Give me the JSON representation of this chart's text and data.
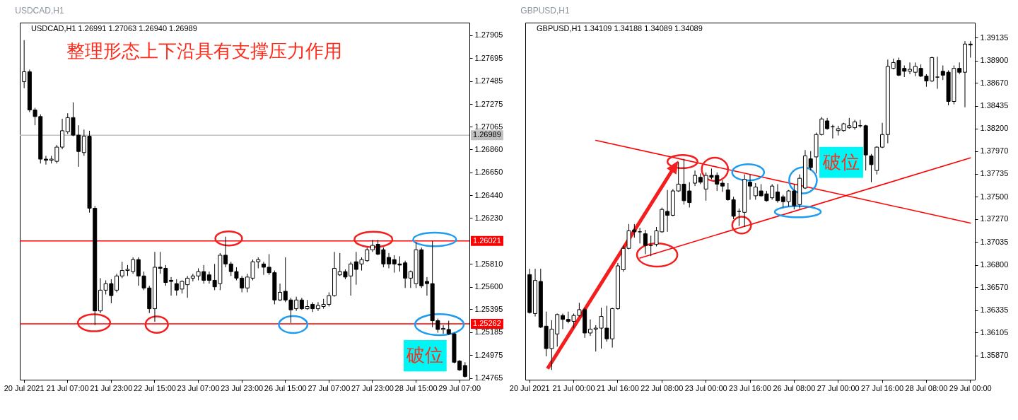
{
  "chart_data": [
    {
      "type": "candlestick",
      "title": "USDCAD,H1",
      "subtitle": "USDCAD,H1  1.26991 1.27063 1.26940 1.26989",
      "annotations": [
        "整理形态上下沿具有支撑压力作用",
        "破位"
      ],
      "color": "#000000",
      "categories": [
        "20 Jul 2021",
        null,
        null,
        null,
        null,
        null,
        null,
        null,
        "21 Jul 07:00",
        null,
        null,
        null,
        null,
        null,
        null,
        null,
        "21 Jul 23:00",
        null,
        null,
        null,
        null,
        null,
        null,
        null,
        "22 Jul 15:00",
        null,
        null,
        null,
        null,
        null,
        null,
        null,
        "23 Jul 07:00",
        null,
        null,
        null,
        null,
        null,
        null,
        null,
        "23 Jul 23:00",
        null,
        null,
        null,
        null,
        null,
        null,
        null,
        "26 Jul 15:00",
        null,
        null,
        null,
        null,
        null,
        null,
        null,
        "27 Jul 07:00",
        null,
        null,
        null,
        null,
        null,
        null,
        null,
        "27 Jul 23:00",
        null,
        null,
        null,
        null,
        null,
        null,
        null,
        "28 Jul 15:00",
        null,
        null,
        null,
        null,
        null,
        null,
        null,
        "29 Jul 07:00",
        null
      ],
      "ohlc": [
        [
          1.2748,
          1.2786,
          1.2742,
          1.2757
        ],
        [
          1.2757,
          1.2759,
          1.272,
          1.2722
        ],
        [
          1.2722,
          1.2724,
          1.2708,
          1.2716
        ],
        [
          1.2716,
          1.2718,
          1.2673,
          1.2677
        ],
        [
          1.2677,
          1.268,
          1.2672,
          1.2676
        ],
        [
          1.2676,
          1.268,
          1.2673,
          1.2677
        ],
        [
          1.2675,
          1.269,
          1.2673,
          1.2688
        ],
        [
          1.2688,
          1.2714,
          1.2686,
          1.2703
        ],
        [
          1.2702,
          1.2719,
          1.27,
          1.2715
        ],
        [
          1.2715,
          1.2729,
          1.2698,
          1.2699
        ],
        [
          1.2699,
          1.2708,
          1.267,
          1.2684
        ],
        [
          1.2683,
          1.2704,
          1.268,
          1.2698
        ],
        [
          1.2698,
          1.2703,
          1.2628,
          1.2632
        ],
        [
          1.2632,
          1.2634,
          1.2525,
          1.2538
        ],
        [
          1.2538,
          1.2568,
          1.2536,
          1.2557
        ],
        [
          1.2557,
          1.2566,
          1.2553,
          1.2563
        ],
        [
          1.2563,
          1.2567,
          1.2545,
          1.2552
        ],
        [
          1.2557,
          1.2572,
          1.2555,
          1.257
        ],
        [
          1.257,
          1.2583,
          1.2568,
          1.2575
        ],
        [
          1.2575,
          1.258,
          1.257,
          1.2576
        ],
        [
          1.2574,
          1.2587,
          1.2572,
          1.2585
        ],
        [
          1.2585,
          1.2587,
          1.2561,
          1.257
        ],
        [
          1.257,
          1.2574,
          1.2557,
          1.2559
        ],
        [
          1.2559,
          1.2561,
          1.2536,
          1.254
        ],
        [
          1.254,
          1.2592,
          1.2528,
          1.2578
        ],
        [
          1.2578,
          1.2592,
          1.2572,
          1.2577
        ],
        [
          1.2577,
          1.258,
          1.2561,
          1.2564
        ],
        [
          1.2566,
          1.2569,
          1.2552,
          1.2565
        ],
        [
          1.2563,
          1.2567,
          1.2552,
          1.2557
        ],
        [
          1.2558,
          1.2566,
          1.2554,
          1.2565
        ],
        [
          1.2562,
          1.257,
          1.255,
          1.2568
        ],
        [
          1.2568,
          1.2572,
          1.2565,
          1.257
        ],
        [
          1.257,
          1.2577,
          1.2566,
          1.2574
        ],
        [
          1.2574,
          1.258,
          1.2563,
          1.2566
        ],
        [
          1.2571,
          1.2574,
          1.2563,
          1.2566
        ],
        [
          1.2566,
          1.2581,
          1.2557,
          1.256
        ],
        [
          1.2563,
          1.2591,
          1.2557,
          1.2589
        ],
        [
          1.2589,
          1.2606,
          1.2578,
          1.2581
        ],
        [
          1.2581,
          1.2583,
          1.257,
          1.2574
        ],
        [
          1.2574,
          1.2578,
          1.2566,
          1.2568
        ],
        [
          1.2568,
          1.257,
          1.2555,
          1.2559
        ],
        [
          1.2559,
          1.2572,
          1.2555,
          1.2569
        ],
        [
          1.2568,
          1.2585,
          1.2566,
          1.2583
        ],
        [
          1.2583,
          1.2587,
          1.2577,
          1.2585
        ],
        [
          1.2581,
          1.2583,
          1.2571,
          1.2578
        ],
        [
          1.2578,
          1.259,
          1.2571,
          1.2573
        ],
        [
          1.2573,
          1.2575,
          1.2544,
          1.2548
        ],
        [
          1.2548,
          1.2563,
          1.2547,
          1.2555
        ],
        [
          1.2556,
          1.2587,
          1.2546,
          1.2548
        ],
        [
          1.2548,
          1.255,
          1.2527,
          1.2539
        ],
        [
          1.254,
          1.2551,
          1.2538,
          1.2548
        ],
        [
          1.2548,
          1.255,
          1.2539,
          1.254
        ],
        [
          1.254,
          1.2548,
          1.2539,
          1.2542
        ],
        [
          1.2544,
          1.2546,
          1.2537,
          1.254
        ],
        [
          1.254,
          1.2546,
          1.2538,
          1.2543
        ],
        [
          1.2542,
          1.2549,
          1.254,
          1.2544
        ],
        [
          1.2544,
          1.2555,
          1.2542,
          1.2552
        ],
        [
          1.2552,
          1.2592,
          1.2551,
          1.2577
        ],
        [
          1.2571,
          1.2591,
          1.257,
          1.2574
        ],
        [
          1.2574,
          1.2576,
          1.2567,
          1.2569
        ],
        [
          1.257,
          1.2583,
          1.2552,
          1.2581
        ],
        [
          1.2583,
          1.2592,
          1.2562,
          1.2576
        ],
        [
          1.2581,
          1.2587,
          1.2575,
          1.2585
        ],
        [
          1.2584,
          1.2596,
          1.2583,
          1.2594
        ],
        [
          1.2594,
          1.2603,
          1.2592,
          1.2598
        ],
        [
          1.2599,
          1.2603,
          1.2589,
          1.259
        ],
        [
          1.2594,
          1.2596,
          1.2578,
          1.2581
        ],
        [
          1.2587,
          1.2591,
          1.2577,
          1.2581
        ],
        [
          1.2585,
          1.2589,
          1.2573,
          1.2581
        ],
        [
          1.2581,
          1.2588,
          1.2574,
          1.258
        ],
        [
          1.2582,
          1.2584,
          1.2559,
          1.2568
        ],
        [
          1.2568,
          1.2575,
          1.2559,
          1.2574
        ],
        [
          1.2563,
          1.2601,
          1.2559,
          1.2594
        ],
        [
          1.2594,
          1.2596,
          1.2559,
          1.2561
        ],
        [
          1.2565,
          1.2569,
          1.2552,
          1.2563
        ],
        [
          1.2563,
          1.2602,
          1.2523,
          1.2529
        ],
        [
          1.2529,
          1.2531,
          1.2518,
          1.2521
        ],
        [
          1.2521,
          1.2525,
          1.2517,
          1.2522
        ],
        [
          1.2521,
          1.2529,
          1.2516,
          1.2517
        ],
        [
          1.2517,
          1.2518,
          1.249,
          1.2491
        ],
        [
          1.2492,
          1.2493,
          1.2483,
          1.2484
        ],
        [
          1.2488,
          1.2491,
          1.2477,
          1.2478
        ]
      ],
      "ylim": [
        1.2475,
        1.2802
      ],
      "yticks": [
        1.27905,
        1.27695,
        1.27485,
        1.27275,
        1.27065,
        {
          "value": 1.2686,
          "label": "1.26860"
        },
        {
          "value": 1.2665,
          "label": "1.26650"
        },
        {
          "value": 1.2644,
          "label": "1.26440"
        },
        {
          "value": 1.2623,
          "label": "1.26230"
        },
        {
          "value": 1.2581,
          "label": "1.25810"
        },
        {
          "value": 1.256,
          "label": "1.25600"
        },
        1.25395,
        1.25185,
        1.24975,
        1.24765
      ],
      "ref_lines": [
        {
          "axis": "y",
          "value": 1.26989,
          "label": "1.26989",
          "color": "#c0c0c0"
        },
        {
          "axis": "y",
          "value": 1.26021,
          "label": "1.26021",
          "color": "#ff0000"
        },
        {
          "axis": "y",
          "value": 1.25262,
          "label": "1.25262",
          "color": "#ff0000"
        }
      ]
    },
    {
      "type": "candlestick",
      "title": "GBPUSD,H1",
      "subtitle": "GBPUSD,H1  1.34109 1.34188 1.34089 1.34089",
      "annotations": [
        "破位"
      ],
      "color": "#000000",
      "categories": [
        "20 Jul 2021",
        null,
        null,
        null,
        null,
        null,
        null,
        null,
        "21 Jul 00:00",
        null,
        null,
        null,
        null,
        null,
        null,
        null,
        "21 Jul 16:00",
        null,
        null,
        null,
        null,
        null,
        null,
        null,
        "22 Jul 08:00",
        null,
        null,
        null,
        null,
        null,
        null,
        null,
        "23 Jul 00:00",
        null,
        null,
        null,
        null,
        null,
        null,
        null,
        "23 Jul 16:00",
        null,
        null,
        null,
        null,
        null,
        null,
        null,
        "26 Jul 08:00",
        null,
        null,
        null,
        null,
        null,
        null,
        null,
        "27 Jul 00:00",
        null,
        null,
        null,
        null,
        null,
        null,
        null,
        "27 Jul 16:00",
        null,
        null,
        null,
        null,
        null,
        null,
        null,
        "28 Jul 08:00",
        null,
        null,
        null,
        null,
        null,
        null,
        null,
        "29 Jul 00:00"
      ],
      "ohlc": [
        [
          1.367,
          1.3676,
          1.363,
          1.3631
        ],
        [
          1.363,
          1.3676,
          1.3627,
          1.3664
        ],
        [
          1.3663,
          1.3676,
          1.3615,
          1.3616
        ],
        [
          1.3617,
          1.3632,
          1.3586,
          1.3594
        ],
        [
          1.3594,
          1.3623,
          1.3572,
          1.3614
        ],
        [
          1.3609,
          1.363,
          1.3596,
          1.3629
        ],
        [
          1.3628,
          1.363,
          1.3614,
          1.3624
        ],
        [
          1.3624,
          1.3632,
          1.362,
          1.3622
        ],
        [
          1.3622,
          1.363,
          1.3615,
          1.3628
        ],
        [
          1.3628,
          1.3641,
          1.3627,
          1.3634
        ],
        [
          1.3634,
          1.3636,
          1.3605,
          1.361
        ],
        [
          1.361,
          1.3624,
          1.3607,
          1.3614
        ],
        [
          1.3614,
          1.3618,
          1.3591,
          1.3615
        ],
        [
          1.3615,
          1.3636,
          1.3594,
          1.3627
        ],
        [
          1.3615,
          1.3638,
          1.3601,
          1.3604
        ],
        [
          1.3604,
          1.3636,
          1.3595,
          1.3635
        ],
        [
          1.3635,
          1.3682,
          1.3634,
          1.3679
        ],
        [
          1.3675,
          1.37,
          1.3673,
          1.3697
        ],
        [
          1.3697,
          1.3722,
          1.3696,
          1.3715
        ],
        [
          1.3716,
          1.3722,
          1.3708,
          1.3714
        ],
        [
          1.3714,
          1.3718,
          1.3702,
          1.3714
        ],
        [
          1.3712,
          1.3716,
          1.3691,
          1.37
        ],
        [
          1.37,
          1.371,
          1.3689,
          1.37
        ],
        [
          1.3701,
          1.3719,
          1.3699,
          1.3715
        ],
        [
          1.3714,
          1.3739,
          1.3713,
          1.3737
        ],
        [
          1.3735,
          1.3757,
          1.3714,
          1.3731
        ],
        [
          1.3731,
          1.3758,
          1.373,
          1.3756
        ],
        [
          1.3756,
          1.3786,
          1.3755,
          1.3763
        ],
        [
          1.3763,
          1.3789,
          1.3742,
          1.3746
        ],
        [
          1.3756,
          1.3765,
          1.3739,
          1.3744
        ],
        [
          1.3764,
          1.3777,
          1.3761,
          1.3772
        ],
        [
          1.377,
          1.3774,
          1.3763,
          1.3765
        ],
        [
          1.3758,
          1.3775,
          1.3746,
          1.3772
        ],
        [
          1.3772,
          1.3779,
          1.3768,
          1.377
        ],
        [
          1.3772,
          1.3775,
          1.3756,
          1.3763
        ],
        [
          1.3764,
          1.3767,
          1.3755,
          1.3761
        ],
        [
          1.3757,
          1.3764,
          1.3746,
          1.3747
        ],
        [
          1.3747,
          1.375,
          1.3727,
          1.373
        ],
        [
          1.3735,
          1.3738,
          1.372,
          1.3735
        ],
        [
          1.3734,
          1.3773,
          1.3719,
          1.3768
        ],
        [
          1.3765,
          1.3773,
          1.3747,
          1.3761
        ],
        [
          1.3751,
          1.3764,
          1.3747,
          1.376
        ],
        [
          1.3756,
          1.3763,
          1.375,
          1.3751
        ],
        [
          1.3753,
          1.3756,
          1.3745,
          1.3746
        ],
        [
          1.3749,
          1.3763,
          1.3747,
          1.3761
        ],
        [
          1.3755,
          1.3763,
          1.3744,
          1.3746
        ],
        [
          1.375,
          1.3752,
          1.3739,
          1.3745
        ],
        [
          1.3745,
          1.3757,
          1.374,
          1.3756
        ],
        [
          1.3756,
          1.3763,
          1.3737,
          1.3741
        ],
        [
          1.3742,
          1.3773,
          1.3738,
          1.3769
        ],
        [
          1.3759,
          1.3798,
          1.3758,
          1.3792
        ],
        [
          1.3789,
          1.3797,
          1.3777,
          1.378
        ],
        [
          1.3791,
          1.3816,
          1.3774,
          1.3814
        ],
        [
          1.3814,
          1.3832,
          1.3813,
          1.383
        ],
        [
          1.3828,
          1.3831,
          1.3819,
          1.382
        ],
        [
          1.3822,
          1.3824,
          1.381,
          1.3822
        ],
        [
          1.3818,
          1.3823,
          1.3813,
          1.382
        ],
        [
          1.3818,
          1.3826,
          1.3817,
          1.3825
        ],
        [
          1.3821,
          1.3831,
          1.382,
          1.3823
        ],
        [
          1.3821,
          1.3829,
          1.3819,
          1.3827
        ],
        [
          1.3823,
          1.3829,
          1.3821,
          1.3823
        ],
        [
          1.3823,
          1.3824,
          1.3777,
          1.3793
        ],
        [
          1.3792,
          1.3794,
          1.3765,
          1.3783
        ],
        [
          1.3777,
          1.3802,
          1.3773,
          1.3801
        ],
        [
          1.3801,
          1.3826,
          1.38,
          1.3814
        ],
        [
          1.3814,
          1.3891,
          1.3805,
          1.3884
        ],
        [
          1.3882,
          1.3892,
          1.3881,
          1.3888
        ],
        [
          1.389,
          1.3893,
          1.3874,
          1.3875
        ],
        [
          1.3882,
          1.3885,
          1.3873,
          1.3879
        ],
        [
          1.3879,
          1.3888,
          1.3876,
          1.3881
        ],
        [
          1.3878,
          1.3888,
          1.3874,
          1.3884
        ],
        [
          1.3882,
          1.3886,
          1.3873,
          1.3874
        ],
        [
          1.3874,
          1.3876,
          1.3863,
          1.3869
        ],
        [
          1.3869,
          1.3894,
          1.3868,
          1.3893
        ],
        [
          1.3873,
          1.3894,
          1.3861,
          1.3873
        ],
        [
          1.3879,
          1.3885,
          1.387,
          1.3875
        ],
        [
          1.3878,
          1.388,
          1.3844,
          1.3848
        ],
        [
          1.3848,
          1.3885,
          1.3845,
          1.3882
        ],
        [
          1.3882,
          1.3888,
          1.3876,
          1.3878
        ],
        [
          1.3878,
          1.391,
          1.3842,
          1.3907
        ],
        [
          1.3907,
          1.391,
          1.3893,
          1.3906
        ]
      ],
      "series": [
        {
          "type": "line",
          "color": "#ff0000",
          "values": [
            null,
            null,
            null,
            null,
            null,
            null,
            null,
            null,
            null,
            null,
            null,
            null,
            1.3808,
            null,
            null,
            null,
            null,
            null,
            null,
            null,
            null,
            null,
            null,
            null,
            null,
            null,
            null,
            null,
            null,
            null,
            null,
            null,
            null,
            null,
            null,
            null,
            null,
            null,
            null,
            null,
            null,
            null,
            null,
            null,
            null,
            null,
            null,
            null,
            null,
            null,
            null,
            null,
            null,
            null,
            null,
            null,
            null,
            null,
            null,
            null,
            null,
            null,
            null,
            null,
            null,
            null,
            null,
            null,
            null,
            null,
            null,
            null,
            null,
            null,
            null,
            null,
            null,
            null,
            null,
            null,
            1.3723
          ]
        },
        {
          "type": "line",
          "color": "#ff0000",
          "values": [
            null,
            null,
            null,
            null,
            null,
            null,
            null,
            null,
            null,
            null,
            null,
            null,
            null,
            null,
            null,
            null,
            null,
            null,
            null,
            null,
            1.3687,
            null,
            null,
            null,
            null,
            null,
            null,
            null,
            null,
            null,
            null,
            null,
            null,
            null,
            null,
            null,
            null,
            null,
            null,
            null,
            null,
            null,
            null,
            null,
            null,
            null,
            null,
            null,
            null,
            null,
            null,
            null,
            null,
            null,
            null,
            null,
            null,
            null,
            null,
            null,
            null,
            null,
            null,
            null,
            null,
            null,
            null,
            null,
            null,
            null,
            null,
            null,
            null,
            null,
            null,
            null,
            null,
            null,
            null,
            null,
            1.379
          ]
        }
      ],
      "ylim": [
        1.3562,
        1.3929
      ],
      "yticks": [
        1.39135,
        {
          "value": 1.389,
          "label": "1.38900"
        },
        {
          "value": 1.3867,
          "label": "1.38670"
        },
        1.38435,
        {
          "value": 1.382,
          "label": "1.38200"
        },
        {
          "value": 1.3797,
          "label": "1.37970"
        },
        1.37735,
        {
          "value": 1.375,
          "label": "1.37500"
        },
        {
          "value": 1.3727,
          "label": "1.37270"
        },
        1.37035,
        {
          "value": 1.368,
          "label": "1.36800"
        },
        {
          "value": 1.3657,
          "label": "1.36570"
        },
        1.36335,
        1.36105,
        {
          "value": 1.3587,
          "label": "1.35870"
        }
      ]
    }
  ]
}
